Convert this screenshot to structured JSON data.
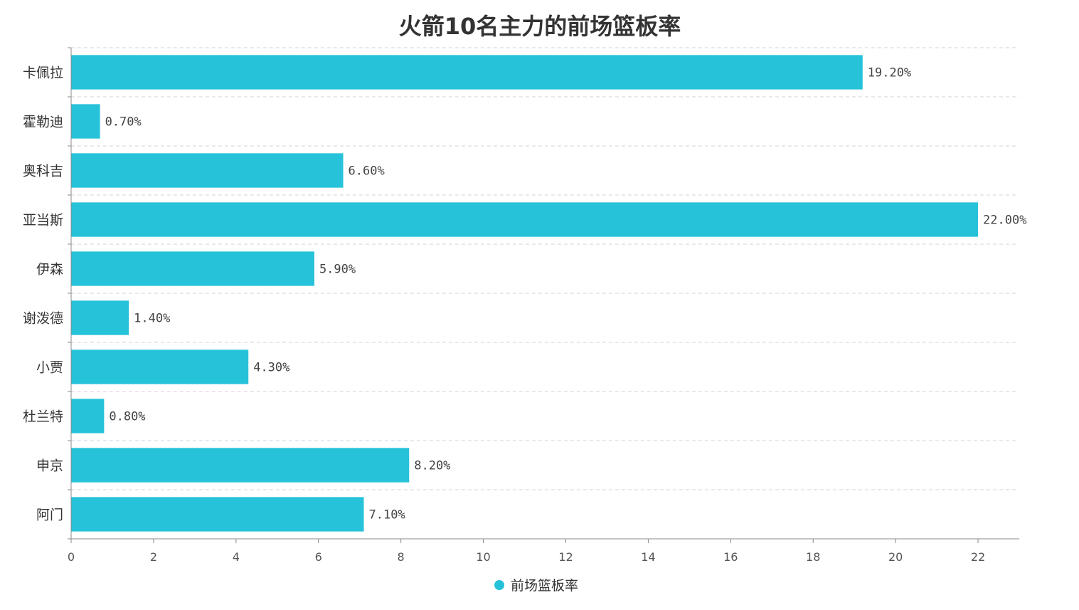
{
  "chart_data": {
    "type": "bar",
    "orientation": "horizontal",
    "title": "火箭10名主力的前场篮板率",
    "categories": [
      "卡佩拉",
      "霍勒迪",
      "奥科吉",
      "亚当斯",
      "伊森",
      "谢泼德",
      "小贾",
      "杜兰特",
      "申京",
      "阿门"
    ],
    "series": [
      {
        "name": "前场篮板率",
        "values": [
          19.2,
          0.7,
          6.6,
          22.0,
          5.9,
          1.4,
          4.3,
          0.8,
          8.2,
          7.1
        ],
        "labels": [
          "19.20%",
          "0.70%",
          "6.60%",
          "22.00%",
          "5.90%",
          "1.40%",
          "4.30%",
          "0.80%",
          "8.20%",
          "7.10%"
        ],
        "color": "#26C2D9"
      }
    ],
    "xlim": [
      0,
      23
    ],
    "xticks": [
      "0",
      "2",
      "4",
      "6",
      "8",
      "10",
      "12",
      "14",
      "16",
      "18",
      "20",
      "22"
    ],
    "xlabel": "",
    "ylabel": "",
    "grid": true,
    "legend_position": "bottom-center"
  }
}
